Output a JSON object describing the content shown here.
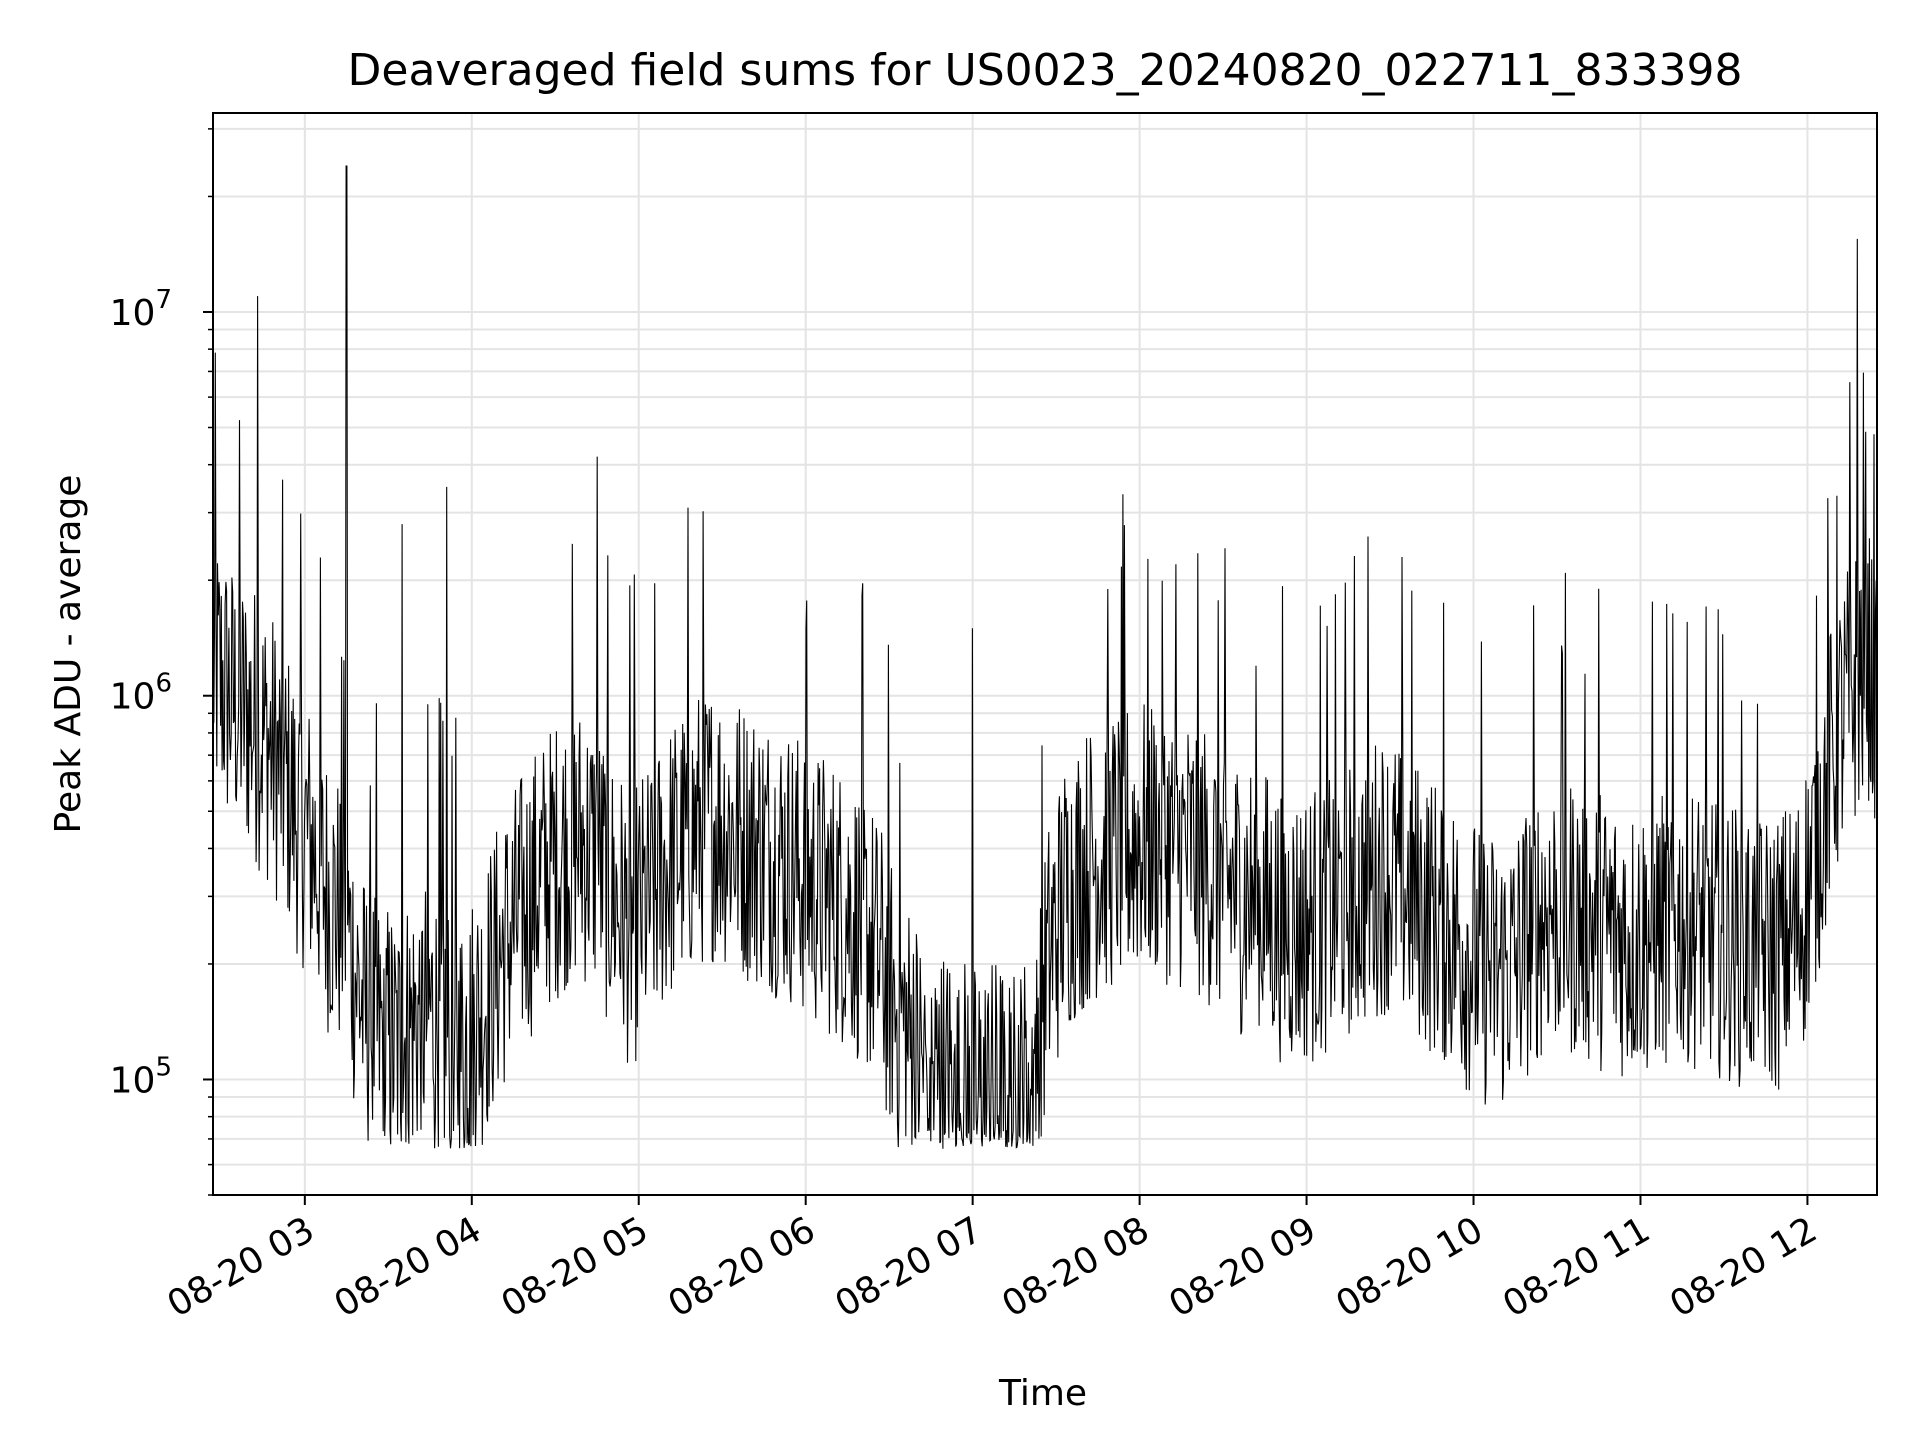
{
  "chart_data": {
    "type": "line",
    "title": "Deaveraged field sums for US0023_20240820_022711_833398",
    "xlabel": "Time",
    "ylabel": "Peak ADU - average",
    "yscale": "log",
    "xlim": [
      "2024-08-20 02:27",
      "2024-08-20 12:25"
    ],
    "ylim": [
      50000,
      33000000
    ],
    "x_ticks": [
      "08-20 03",
      "08-20 04",
      "08-20 05",
      "08-20 06",
      "08-20 07",
      "08-20 08",
      "08-20 09",
      "08-20 10",
      "08-20 11",
      "08-20 12"
    ],
    "y_ticks": [
      {
        "base": "10",
        "exp": "5",
        "value": 100000
      },
      {
        "base": "10",
        "exp": "6",
        "value": 1000000
      },
      {
        "base": "10",
        "exp": "7",
        "value": 10000000
      }
    ],
    "grid": true,
    "line_color": "#000000",
    "series": [
      {
        "x": [
          "02:27",
          "02:33",
          "02:39",
          "02:45",
          "02:51",
          "02:57",
          "03:03",
          "03:09",
          "03:15",
          "03:21",
          "03:27",
          "03:33",
          "03:39",
          "03:45",
          "03:51",
          "03:57",
          "04:03",
          "04:09",
          "04:15",
          "04:21",
          "04:27",
          "04:33",
          "04:39",
          "04:45",
          "04:51",
          "04:57",
          "05:03",
          "05:09",
          "05:15",
          "05:21",
          "05:27",
          "05:33",
          "05:39",
          "05:45",
          "05:51",
          "05:57",
          "06:03",
          "06:09",
          "06:15",
          "06:21",
          "06:27",
          "06:33",
          "06:39",
          "06:45",
          "06:51",
          "06:57",
          "07:03",
          "07:09",
          "07:15",
          "07:21",
          "07:27",
          "07:33",
          "07:39",
          "07:45",
          "07:51",
          "07:57",
          "08:03",
          "08:09",
          "08:15",
          "08:21",
          "08:27",
          "08:33",
          "08:39",
          "08:45",
          "08:51",
          "08:57",
          "09:03",
          "09:09",
          "09:15",
          "09:21",
          "09:27",
          "09:33",
          "09:39",
          "09:45",
          "09:51",
          "09:57",
          "10:03",
          "10:09",
          "10:15",
          "10:21",
          "10:27",
          "10:33",
          "10:39",
          "10:45",
          "10:51",
          "10:57",
          "11:03",
          "11:09",
          "11:15",
          "11:21",
          "11:27",
          "11:33",
          "11:39",
          "11:45",
          "11:51",
          "11:57",
          "12:03",
          "12:09",
          "12:15",
          "12:21",
          "12:25"
        ],
        "y": [
          1200000,
          1000000,
          900000,
          800000,
          650000,
          500000,
          400000,
          300000,
          250000,
          150000,
          130000,
          120000,
          140000,
          150000,
          130000,
          120000,
          150000,
          200000,
          250000,
          300000,
          350000,
          400000,
          420000,
          380000,
          300000,
          250000,
          280000,
          350000,
          400000,
          450000,
          480000,
          450000,
          420000,
          400000,
          380000,
          350000,
          320000,
          300000,
          280000,
          250000,
          200000,
          150000,
          120000,
          100000,
          95000,
          90000,
          88000,
          90000,
          85000,
          95000,
          200000,
          300000,
          350000,
          380000,
          400000,
          420000,
          430000,
          420000,
          400000,
          380000,
          350000,
          320000,
          300000,
          280000,
          260000,
          250000,
          260000,
          280000,
          300000,
          320000,
          350000,
          330000,
          300000,
          270000,
          250000,
          220000,
          200000,
          190000,
          200000,
          250000,
          280000,
          270000,
          260000,
          250000,
          240000,
          230000,
          240000,
          250000,
          260000,
          250000,
          240000,
          230000,
          220000,
          210000,
          220000,
          250000,
          400000,
          700000,
          1000000,
          1200000,
          1100000
        ],
        "spikes": [
          {
            "x": "02:43",
            "y": 11000000
          },
          {
            "x": "03:15",
            "y": 24000000
          },
          {
            "x": "03:35",
            "y": 2800000
          },
          {
            "x": "03:51",
            "y": 3500000
          },
          {
            "x": "04:45",
            "y": 4200000
          },
          {
            "x": "06:00",
            "y": 1500000
          },
          {
            "x": "07:00",
            "y": 1500000
          },
          {
            "x": "08:13",
            "y": 2200000
          },
          {
            "x": "09:22",
            "y": 2600000
          },
          {
            "x": "10:45",
            "y": 1900000
          },
          {
            "x": "12:18",
            "y": 15500000
          },
          {
            "x": "12:24",
            "y": 4800000
          }
        ]
      }
    ]
  }
}
